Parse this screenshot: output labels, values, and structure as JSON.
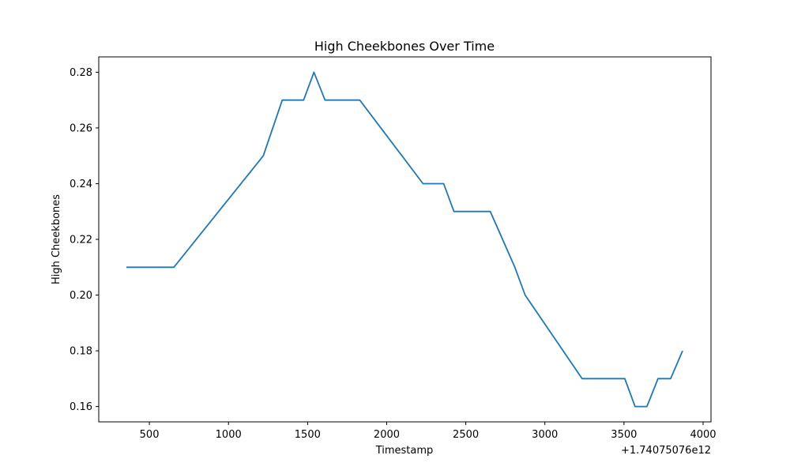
{
  "chart_data": {
    "type": "line",
    "title": "High Cheekbones Over Time",
    "xlabel": "Timestamp",
    "ylabel": "High Cheekbones",
    "x_offset_label": "+1.74075076e12",
    "xlim": [
      180,
      4050
    ],
    "ylim": [
      0.1545,
      0.2855
    ],
    "xticks": [
      500,
      1000,
      1500,
      2000,
      2500,
      3000,
      3500,
      4000
    ],
    "yticks": [
      0.16,
      0.18,
      0.2,
      0.22,
      0.24,
      0.26,
      0.28
    ],
    "ytick_labels": [
      "0.16",
      "0.18",
      "0.20",
      "0.22",
      "0.24",
      "0.26",
      "0.28"
    ],
    "grid": false,
    "legend": "none",
    "series": [
      {
        "color": "#1f77b4",
        "x": [
          355,
          655,
          1220,
          1340,
          1475,
          1540,
          1610,
          1830,
          2230,
          2360,
          2425,
          2655,
          2810,
          2875,
          3235,
          3505,
          3570,
          3645,
          3715,
          3795,
          3870
        ],
        "y": [
          0.21,
          0.21,
          0.25,
          0.27,
          0.27,
          0.28,
          0.27,
          0.27,
          0.24,
          0.24,
          0.23,
          0.23,
          0.21,
          0.2,
          0.17,
          0.17,
          0.16,
          0.16,
          0.17,
          0.17,
          0.18
        ]
      }
    ]
  }
}
